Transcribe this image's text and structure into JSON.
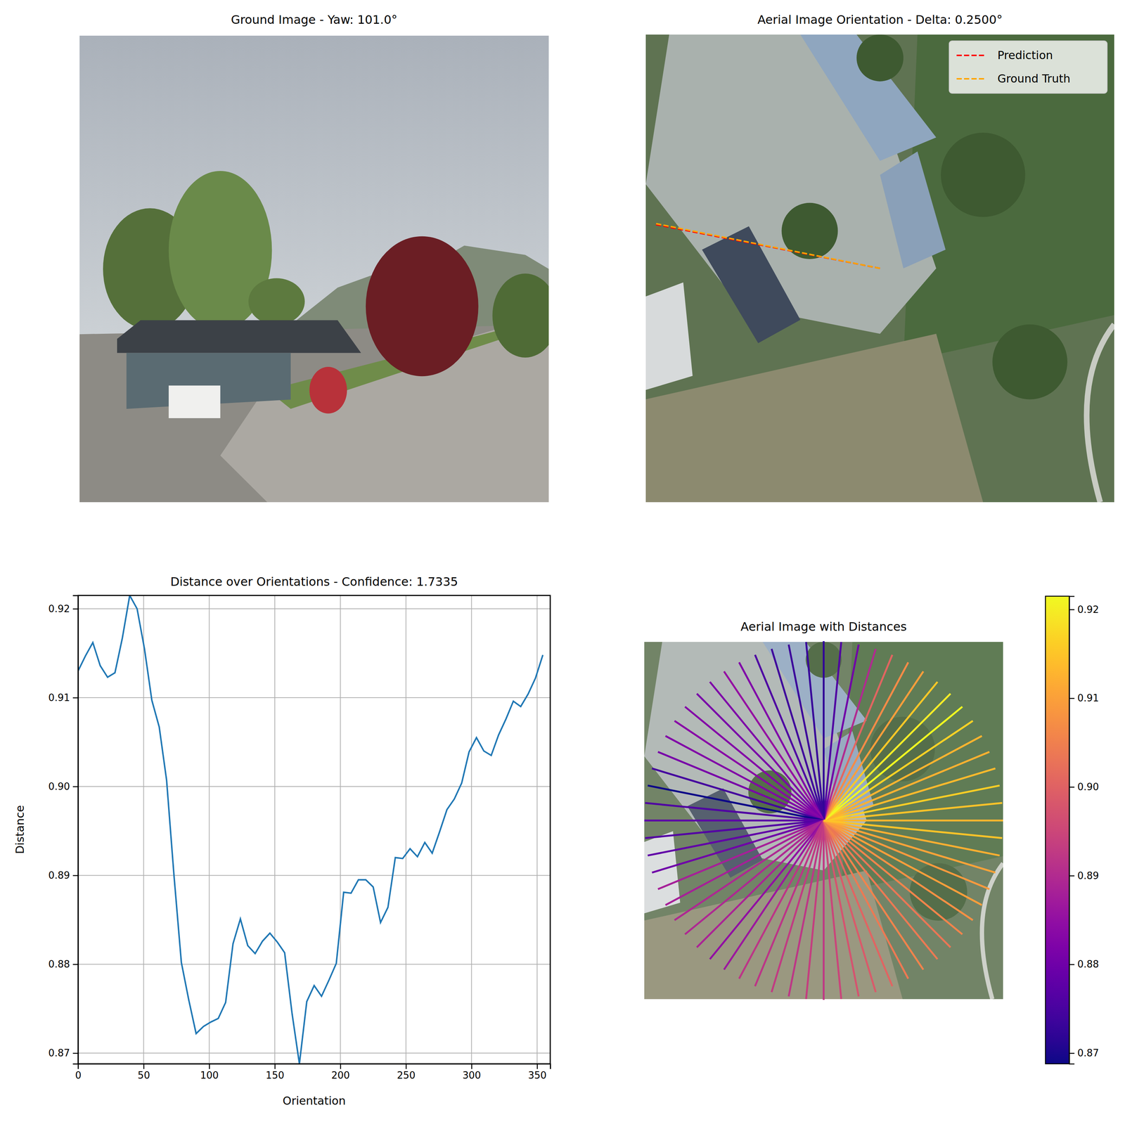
{
  "chart_data": [
    {
      "type": "image",
      "title": "Ground Image - Yaw: 101.0°"
    },
    {
      "type": "image",
      "title": "Aerial Image Orientation - Delta: 0.2500°",
      "legend": "upper right",
      "series": [
        {
          "name": "Prediction",
          "color": "#ff0000",
          "line_style": "dashed",
          "values": [
            281.05
          ]
        },
        {
          "name": "Ground Truth",
          "color": "#ffa500",
          "line_style": "dashed",
          "values": [
            281.3
          ]
        }
      ]
    },
    {
      "type": "line",
      "title": "Distance over Orientations - Confidence: 1.7335",
      "xlabel": "Orientation",
      "ylabel": "Distance",
      "color": "#1f77b4",
      "grid": true,
      "x": [
        0,
        5.625,
        11.25,
        16.875,
        22.5,
        28.125,
        33.75,
        39.375,
        45,
        50.625,
        56.25,
        61.875,
        67.5,
        73.125,
        78.75,
        84.375,
        90,
        95.625,
        101.25,
        106.875,
        112.5,
        118.125,
        123.75,
        129.375,
        135,
        140.625,
        146.25,
        151.875,
        157.5,
        163.125,
        168.75,
        174.375,
        180,
        185.625,
        191.25,
        196.875,
        202.5,
        208.125,
        213.75,
        219.375,
        225,
        230.625,
        236.25,
        241.875,
        247.5,
        253.125,
        258.75,
        264.375,
        270,
        275.625,
        281.25,
        286.875,
        292.5,
        298.125,
        303.75,
        309.375,
        315,
        320.625,
        326.25,
        331.875,
        337.5,
        343.125,
        348.75,
        354.375
      ],
      "values": [
        0.913,
        0.9147,
        0.9162,
        0.9136,
        0.9123,
        0.9128,
        0.9167,
        0.9215,
        0.92,
        0.9155,
        0.9097,
        0.9067,
        0.9007,
        0.89,
        0.8802,
        0.876,
        0.8722,
        0.873,
        0.8735,
        0.8739,
        0.8757,
        0.8823,
        0.8851,
        0.8821,
        0.8812,
        0.8826,
        0.8835,
        0.8825,
        0.8813,
        0.8745,
        0.8688,
        0.8758,
        0.8776,
        0.8764,
        0.8782,
        0.8801,
        0.8881,
        0.888,
        0.8895,
        0.8895,
        0.8887,
        0.8847,
        0.8864,
        0.892,
        0.8919,
        0.893,
        0.8921,
        0.8937,
        0.8925,
        0.8949,
        0.8974,
        0.8986,
        0.9004,
        0.9039,
        0.9055,
        0.904,
        0.9035,
        0.9058,
        0.9076,
        0.9096,
        0.909,
        0.9104,
        0.9122,
        0.9148
      ],
      "xlim": [
        0,
        360
      ],
      "xticks": [
        0,
        50,
        100,
        150,
        200,
        250,
        300,
        350
      ],
      "ylim": [
        0.8688,
        0.9215
      ],
      "yticks": [
        0.87,
        0.88,
        0.89,
        {
          "value": 0.9,
          "label": "0.90"
        },
        0.91,
        0.92
      ]
    },
    {
      "type": "rays",
      "title": "Aerial Image with Distances",
      "x": [
        0,
        5.625,
        11.25,
        16.875,
        22.5,
        28.125,
        33.75,
        39.375,
        45,
        50.625,
        56.25,
        61.875,
        67.5,
        73.125,
        78.75,
        84.375,
        90,
        95.625,
        101.25,
        106.875,
        112.5,
        118.125,
        123.75,
        129.375,
        135,
        140.625,
        146.25,
        151.875,
        157.5,
        163.125,
        168.75,
        174.375,
        180,
        185.625,
        191.25,
        196.875,
        202.5,
        208.125,
        213.75,
        219.375,
        225,
        230.625,
        236.25,
        241.875,
        247.5,
        253.125,
        258.75,
        264.375,
        270,
        275.625,
        281.25,
        286.875,
        292.5,
        298.125,
        303.75,
        309.375,
        315,
        320.625,
        326.25,
        331.875,
        337.5,
        343.125,
        348.75,
        354.375
      ],
      "values": [
        0.913,
        0.9147,
        0.9162,
        0.9136,
        0.9123,
        0.9128,
        0.9167,
        0.9215,
        0.92,
        0.9155,
        0.9097,
        0.9067,
        0.9007,
        0.89,
        0.8802,
        0.876,
        0.8722,
        0.873,
        0.8735,
        0.8739,
        0.8757,
        0.8823,
        0.8851,
        0.8821,
        0.8812,
        0.8826,
        0.8835,
        0.8825,
        0.8813,
        0.8745,
        0.8688,
        0.8758,
        0.8776,
        0.8764,
        0.8782,
        0.8801,
        0.8881,
        0.888,
        0.8895,
        0.8895,
        0.8887,
        0.8847,
        0.8864,
        0.892,
        0.8919,
        0.893,
        0.8921,
        0.8937,
        0.8925,
        0.8949,
        0.8974,
        0.8986,
        0.9004,
        0.9039,
        0.9055,
        0.904,
        0.9035,
        0.9058,
        0.9076,
        0.9096,
        0.909,
        0.9104,
        0.9122,
        0.9148
      ],
      "colorbar": {
        "range": [
          0.8688,
          0.9215
        ],
        "ticks": [
          0.87,
          0.88,
          0.89,
          {
            "value": 0.9,
            "label": "0.90"
          },
          0.91,
          0.92
        ]
      }
    }
  ]
}
